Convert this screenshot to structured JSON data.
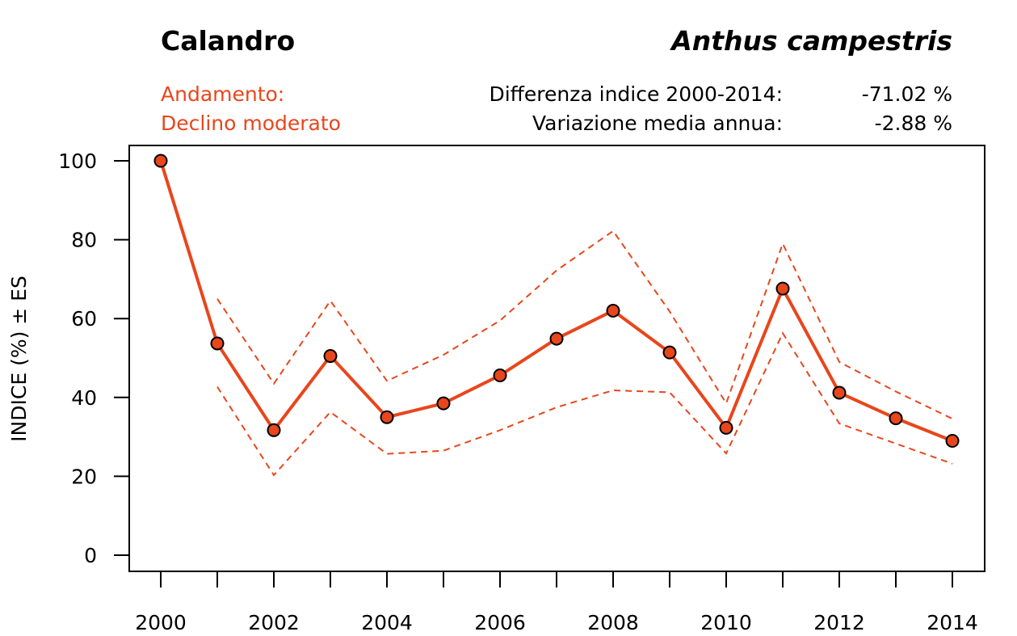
{
  "header": {
    "common_name": "Calandro",
    "species_name": "Anthus campestris",
    "trend_label": "Andamento:",
    "trend_value": "Declino moderato",
    "diff_label": "Differenza indice 2000-2014:",
    "diff_value": "-71.02 %",
    "var_label": "Variazione media annua:",
    "var_value": "-2.88 %"
  },
  "colors": {
    "accent": "#e8461c",
    "point_fill": "#e8461c",
    "text": "#000000"
  },
  "chart_data": {
    "type": "line",
    "title": "Calandro",
    "xlabel": "",
    "ylabel": "INDICE (%) ± ES",
    "x": [
      2000,
      2001,
      2002,
      2003,
      2004,
      2005,
      2006,
      2007,
      2008,
      2009,
      2010,
      2011,
      2012,
      2013,
      2014
    ],
    "xlim": [
      2000,
      2014
    ],
    "ylim": [
      0,
      100
    ],
    "x_ticks": [
      2000,
      2001,
      2002,
      2003,
      2004,
      2005,
      2006,
      2007,
      2008,
      2009,
      2010,
      2011,
      2012,
      2013,
      2014
    ],
    "x_tick_labels": [
      "2000",
      "2002",
      "2004",
      "2006",
      "2008",
      "2010",
      "2012",
      "2014"
    ],
    "y_ticks": [
      0,
      20,
      40,
      60,
      80,
      100
    ],
    "y_tick_labels": [
      "0",
      "20",
      "40",
      "60",
      "80",
      "100"
    ],
    "grid": false,
    "series": [
      {
        "name": "Indice",
        "style": "solid-with-points",
        "values": [
          100,
          53.7,
          31.7,
          50.5,
          35.0,
          38.5,
          45.6,
          54.9,
          62.0,
          51.4,
          32.3,
          67.6,
          41.2,
          34.7,
          29.0
        ]
      },
      {
        "name": "Indice + ES",
        "style": "dashed",
        "values": [
          null,
          65.0,
          43.5,
          64.5,
          44.2,
          50.8,
          59.5,
          72.2,
          82.2,
          61.8,
          38.5,
          79.0,
          49.0,
          41.5,
          34.6
        ]
      },
      {
        "name": "Indice - ES",
        "style": "dashed",
        "values": [
          null,
          42.7,
          20.3,
          36.3,
          25.7,
          26.5,
          31.7,
          37.5,
          41.8,
          41.3,
          25.8,
          56.3,
          33.4,
          28.3,
          23.2
        ]
      }
    ]
  }
}
